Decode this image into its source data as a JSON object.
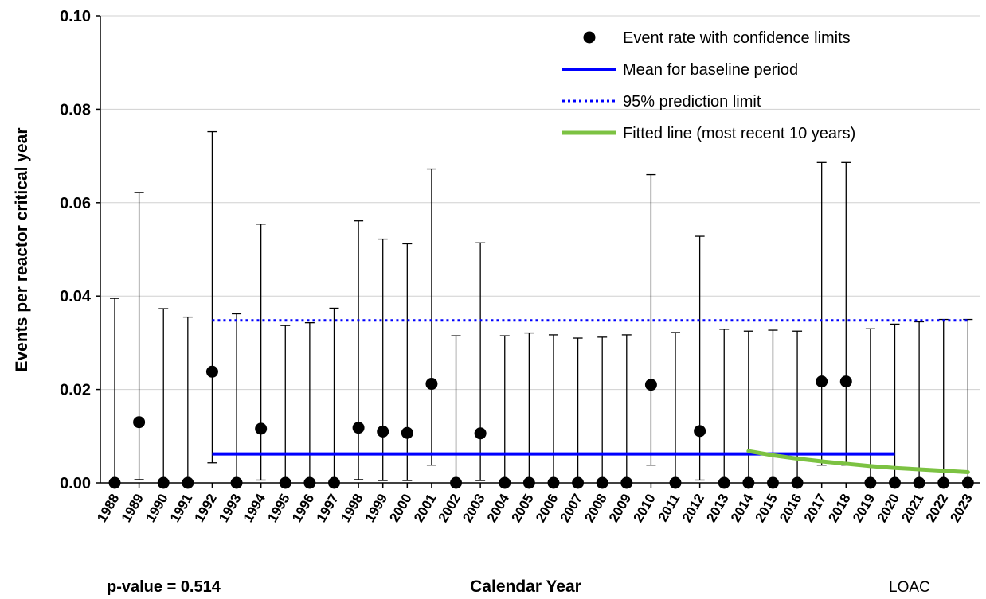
{
  "chart_data": {
    "type": "scatter",
    "xlabel": "Calendar Year",
    "ylabel": "Events per reactor critical year",
    "ylim": [
      0,
      0.1
    ],
    "y_ticks": [
      "0.00",
      "0.02",
      "0.04",
      "0.06",
      "0.08",
      "0.10"
    ],
    "y_tick_values": [
      0,
      0.02,
      0.04,
      0.06,
      0.08,
      0.1
    ],
    "grid": "horizontal",
    "legend_position": "top-right",
    "categories": [
      "1988",
      "1989",
      "1990",
      "1991",
      "1992",
      "1993",
      "1994",
      "1995",
      "1996",
      "1997",
      "1998",
      "1999",
      "2000",
      "2001",
      "2002",
      "2003",
      "2004",
      "2005",
      "2006",
      "2007",
      "2008",
      "2009",
      "2010",
      "2011",
      "2012",
      "2013",
      "2014",
      "2015",
      "2016",
      "2017",
      "2018",
      "2019",
      "2020",
      "2021",
      "2022",
      "2023"
    ],
    "series": [
      {
        "name": "Event rate with confidence limits",
        "kind": "point-with-errorbars",
        "color": "#000000",
        "values": [
          0,
          0.013,
          0,
          0,
          0.0238,
          0,
          0.0116,
          0,
          0,
          0,
          0.0118,
          0.011,
          0.0107,
          0.0212,
          0,
          0.0106,
          0,
          0,
          0,
          0,
          0,
          0,
          0.021,
          0,
          0.0111,
          0,
          0,
          0,
          0,
          0.0217,
          0.0217,
          0,
          0,
          0,
          0,
          0
        ],
        "lower": [
          0,
          0.0007,
          0,
          0,
          0.0043,
          0,
          0.0006,
          0,
          0,
          0,
          0.0007,
          0.0005,
          0.0005,
          0.0038,
          0,
          0.0005,
          0,
          0,
          0,
          0,
          0,
          0,
          0.0038,
          0,
          0.0006,
          0,
          0,
          0,
          0,
          0.0038,
          0.0038,
          0,
          0,
          0,
          0,
          0
        ],
        "upper": [
          0.0395,
          0.0622,
          0.0373,
          0.0355,
          0.0752,
          0.0362,
          0.0554,
          0.0337,
          0.0343,
          0.0374,
          0.0561,
          0.0522,
          0.0512,
          0.0672,
          0.0315,
          0.0514,
          0.0315,
          0.0321,
          0.0317,
          0.031,
          0.0312,
          0.0317,
          0.066,
          0.0322,
          0.0528,
          0.0329,
          0.0325,
          0.0327,
          0.0325,
          0.0686,
          0.0686,
          0.033,
          0.034,
          0.0345,
          0.035,
          0.035
        ]
      },
      {
        "name": "Mean for baseline period",
        "kind": "hline-segment",
        "color": "#0000ff",
        "x_start": "1992",
        "x_end": "2020",
        "value": 0.0062
      },
      {
        "name": "95% prediction limit",
        "kind": "hline-dotted",
        "color": "#0000ff",
        "x_start": "1992",
        "x_end": "2023",
        "value": 0.0348
      },
      {
        "name": "Fitted line (most recent 10 years)",
        "kind": "curve",
        "color": "#7cc242",
        "x": [
          "2014",
          "2015",
          "2016",
          "2017",
          "2018",
          "2019",
          "2020",
          "2021",
          "2022",
          "2023"
        ],
        "values": [
          0.0068,
          0.0059,
          0.0052,
          0.0046,
          0.0041,
          0.0036,
          0.0032,
          0.0029,
          0.0026,
          0.0023
        ]
      }
    ]
  },
  "footer": {
    "p_value": "p-value = 0.514",
    "tag": "LOAC"
  }
}
